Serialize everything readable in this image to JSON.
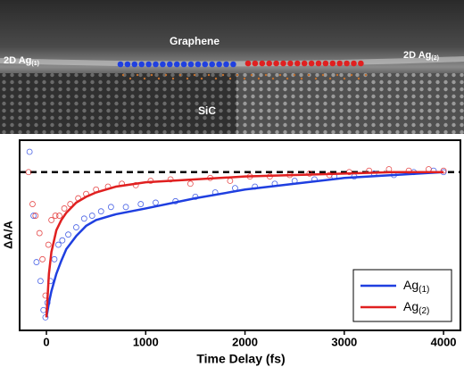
{
  "image": {
    "labels": {
      "graphene": "Graphene",
      "sic": "SiC",
      "ag1": "2D Ag",
      "ag1_sub": "(1)",
      "ag2": "2D Ag",
      "ag2_sub": "(2)"
    }
  },
  "chart_data": {
    "type": "line",
    "x_label": "Time Delay (fs)",
    "y_label": "ΔA/A",
    "xlim": [
      -270,
      4170
    ],
    "xticks": [
      0,
      1000,
      2000,
      3000,
      4000
    ],
    "ylim": [
      -1.09,
      0.22
    ],
    "reference_line": 0,
    "legend": "lower right",
    "series": [
      {
        "name": "Ag",
        "name_sub": "(1)",
        "color": "#1f3fe0",
        "x": [
          0,
          25,
          50,
          100,
          150,
          200,
          300,
          400,
          500,
          700,
          1000,
          1500,
          2000,
          2500,
          3000,
          3500,
          4000
        ],
        "values": [
          -1.0,
          -0.9,
          -0.82,
          -0.7,
          -0.61,
          -0.53,
          -0.44,
          -0.37,
          -0.33,
          -0.29,
          -0.25,
          -0.18,
          -0.12,
          -0.08,
          -0.04,
          -0.02,
          0.0
        ],
        "scatter_x": [
          -170,
          -130,
          -100,
          -60,
          -30,
          -10,
          10,
          40,
          80,
          120,
          160,
          220,
          300,
          380,
          460,
          550,
          650,
          800,
          950,
          1100,
          1300,
          1500,
          1700,
          1900,
          2100,
          2300,
          2500,
          2700,
          2900,
          3100,
          3300,
          3500,
          3700,
          3900,
          4000
        ],
        "scatter_values": [
          0.14,
          -0.3,
          -0.62,
          -0.75,
          -0.95,
          -1.0,
          -0.9,
          -0.75,
          -0.6,
          -0.5,
          -0.47,
          -0.43,
          -0.38,
          -0.32,
          -0.3,
          -0.27,
          -0.24,
          -0.24,
          -0.22,
          -0.21,
          -0.2,
          -0.17,
          -0.14,
          -0.11,
          -0.1,
          -0.08,
          -0.06,
          -0.05,
          -0.03,
          -0.03,
          -0.01,
          -0.02,
          0.0,
          0.01,
          0.0
        ]
      },
      {
        "name": "Ag",
        "name_sub": "(2)",
        "color": "#e02020",
        "x": [
          0,
          25,
          50,
          100,
          150,
          200,
          300,
          400,
          500,
          700,
          1000,
          1500,
          2000,
          2500,
          3000,
          3500,
          4000
        ],
        "values": [
          -1.0,
          -0.7,
          -0.55,
          -0.4,
          -0.33,
          -0.28,
          -0.21,
          -0.17,
          -0.14,
          -0.1,
          -0.07,
          -0.05,
          -0.03,
          -0.02,
          -0.01,
          0.0,
          0.0
        ],
        "scatter_x": [
          -180,
          -140,
          -110,
          -70,
          -40,
          -10,
          20,
          50,
          90,
          130,
          180,
          240,
          320,
          400,
          500,
          620,
          760,
          900,
          1050,
          1250,
          1450,
          1650,
          1850,
          2050,
          2250,
          2450,
          2650,
          2850,
          3050,
          3250,
          3450,
          3650,
          3850,
          4000
        ],
        "scatter_values": [
          0.0,
          -0.22,
          -0.3,
          -0.42,
          -0.6,
          -0.85,
          -0.5,
          -0.33,
          -0.3,
          -0.3,
          -0.25,
          -0.22,
          -0.18,
          -0.15,
          -0.12,
          -0.1,
          -0.08,
          -0.09,
          -0.06,
          -0.05,
          -0.08,
          -0.04,
          -0.06,
          -0.03,
          -0.03,
          -0.02,
          -0.01,
          -0.02,
          0.0,
          0.01,
          0.02,
          0.01,
          0.02,
          0.01
        ]
      }
    ]
  }
}
